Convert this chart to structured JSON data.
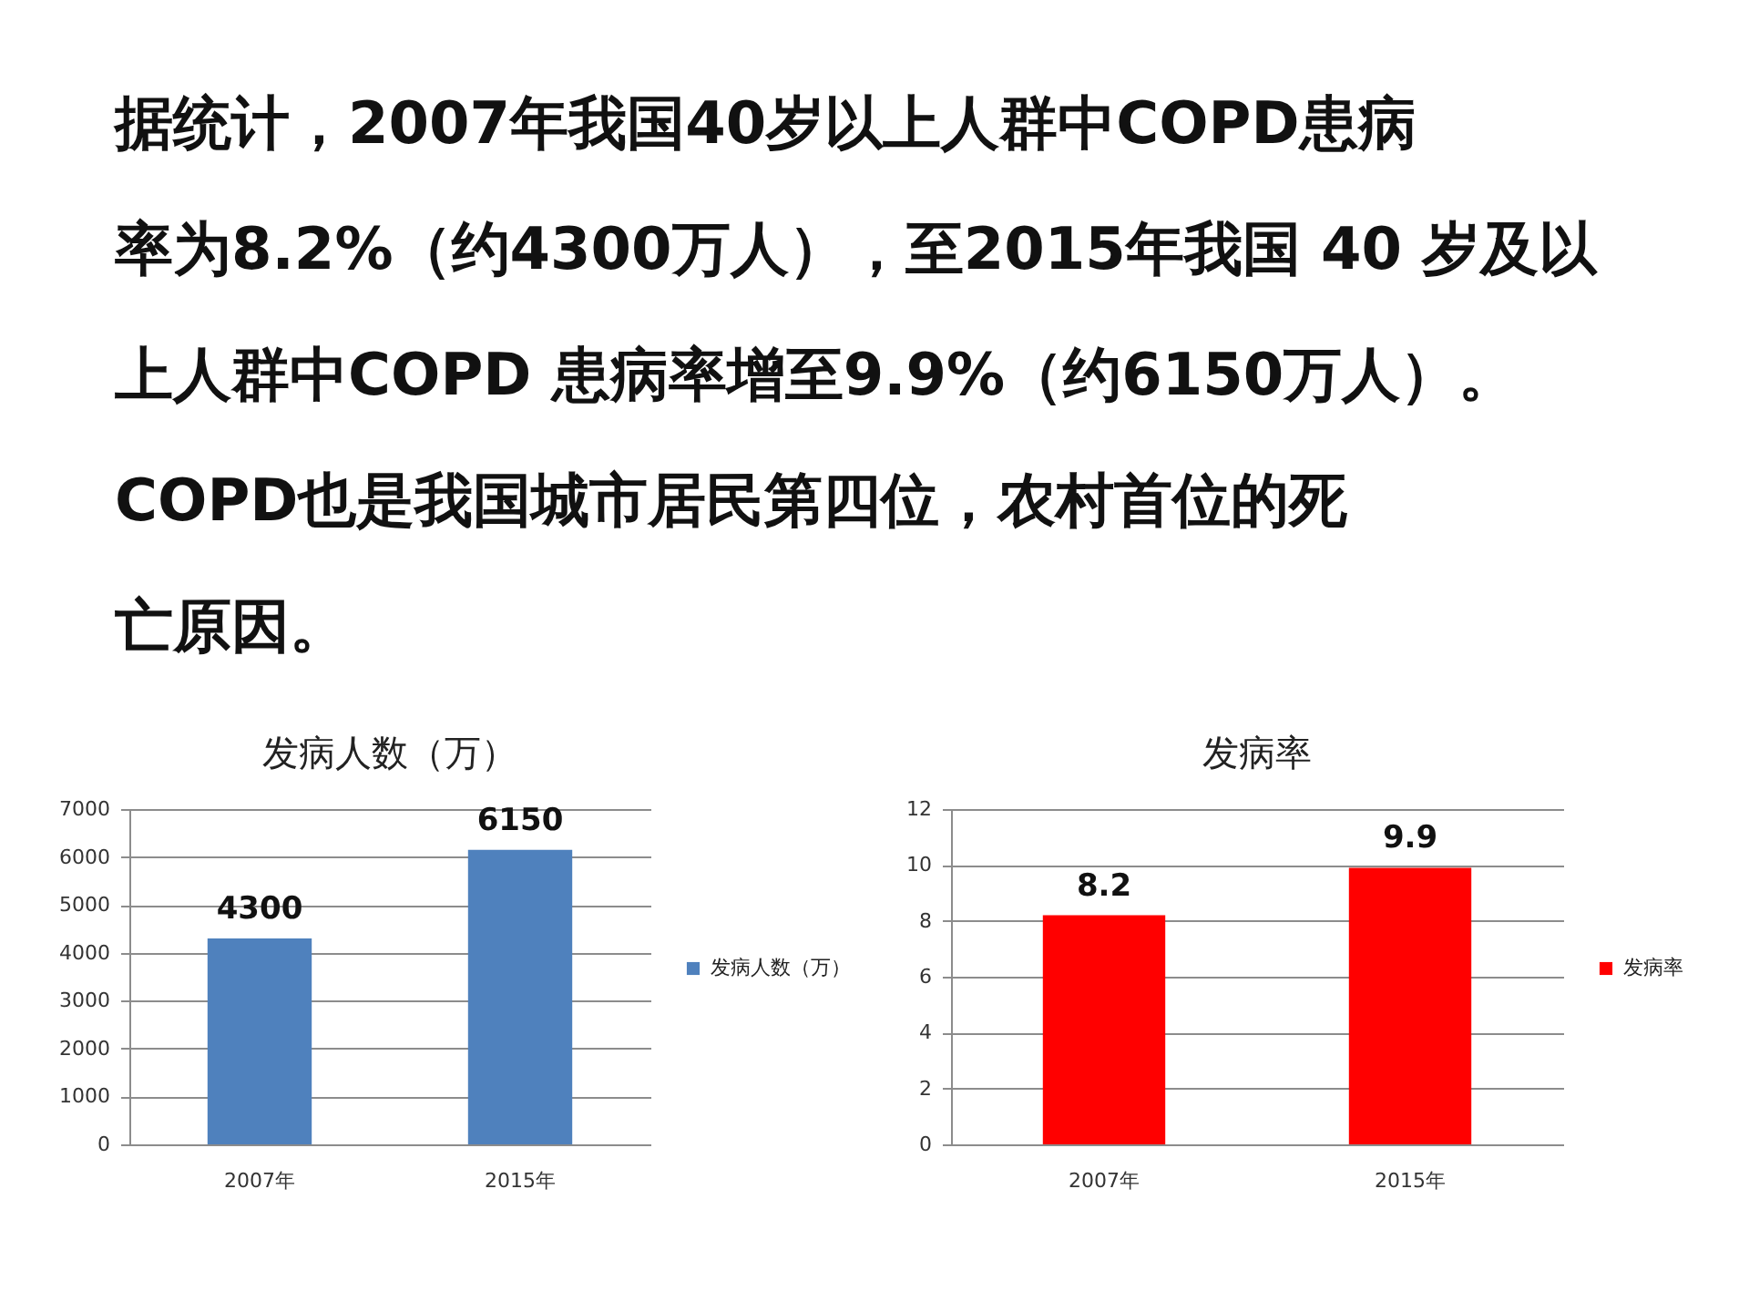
{
  "chart_data": [
    {
      "type": "other",
      "annotations": [
        "据统计，2007年我国40岁以上人群中COPD患病",
        "率为8.2%（约4300万人），至2015年我国 40 岁及以",
        "上人群中COPD 患病率增至9.9%（约6150万人）。",
        "COPD也是我国城市居民第四位，农村首位的死",
        "亡原因。"
      ]
    },
    {
      "type": "bar",
      "title": "发病人数（万）",
      "categories": [
        "2007年",
        "2015年"
      ],
      "series": [
        {
          "name": "发病人数（万）",
          "color": "#4f81bd",
          "values": [
            4300,
            6150
          ]
        }
      ],
      "ylim": [
        0,
        7000
      ],
      "yticks": [
        0,
        1000,
        2000,
        3000,
        4000,
        5000,
        6000,
        7000
      ],
      "grid": "y",
      "legend": "right",
      "data_labels": true
    },
    {
      "type": "bar",
      "title": "发病率",
      "categories": [
        "2007年",
        "2015年"
      ],
      "series": [
        {
          "name": "发病率",
          "color": "#ff0000",
          "values": [
            8.2,
            9.9
          ]
        }
      ],
      "ylim": [
        0,
        12
      ],
      "yticks": [
        0,
        2,
        4,
        6,
        8,
        10,
        12
      ],
      "grid": "y",
      "legend": "right",
      "data_labels": true
    }
  ]
}
